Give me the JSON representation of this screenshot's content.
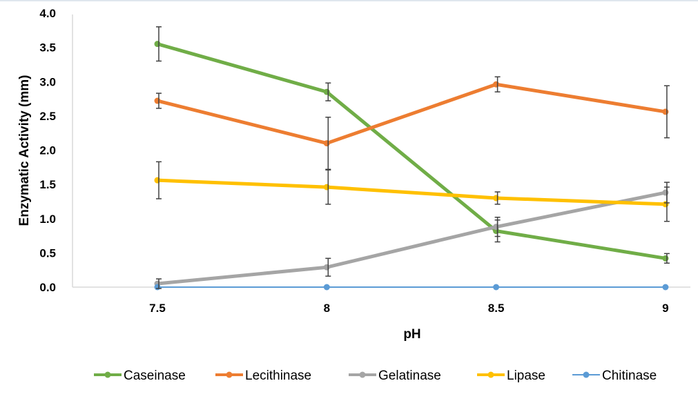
{
  "chart_data": {
    "type": "line",
    "title": "",
    "xlabel": "pH",
    "ylabel": "Enzymatic Activity (mm)",
    "categories": [
      "7.5",
      "8",
      "8.5",
      "9"
    ],
    "ylim": [
      0,
      4.0
    ],
    "yticks": [
      "0.0",
      "0.5",
      "1.0",
      "1.5",
      "2.0",
      "2.5",
      "3.0",
      "3.5",
      "4.0"
    ],
    "grid": false,
    "legend": "bottom",
    "series": [
      {
        "name": "Caseinase",
        "color": "#70ad47",
        "values": [
          3.55,
          2.85,
          0.82,
          0.42
        ],
        "errors": [
          0.25,
          0.13,
          0.16,
          0.07
        ]
      },
      {
        "name": "Lecithinase",
        "color": "#ed7d31",
        "values": [
          2.72,
          2.1,
          2.96,
          2.56
        ],
        "errors": [
          0.11,
          0.38,
          0.11,
          0.38
        ]
      },
      {
        "name": "Gelatinase",
        "color": "#a5a5a5",
        "values": [
          0.05,
          0.29,
          0.88,
          1.38
        ],
        "errors": [
          0.07,
          0.13,
          0.14,
          0.15
        ]
      },
      {
        "name": "Lipase",
        "color": "#ffc000",
        "values": [
          1.56,
          1.46,
          1.3,
          1.21
        ],
        "errors": [
          0.27,
          0.25,
          0.09,
          0.25
        ]
      },
      {
        "name": "Chitinase",
        "color": "#5b9bd5",
        "values": [
          0,
          0,
          0,
          0
        ],
        "errors": [
          0,
          0,
          0,
          0
        ]
      }
    ]
  }
}
